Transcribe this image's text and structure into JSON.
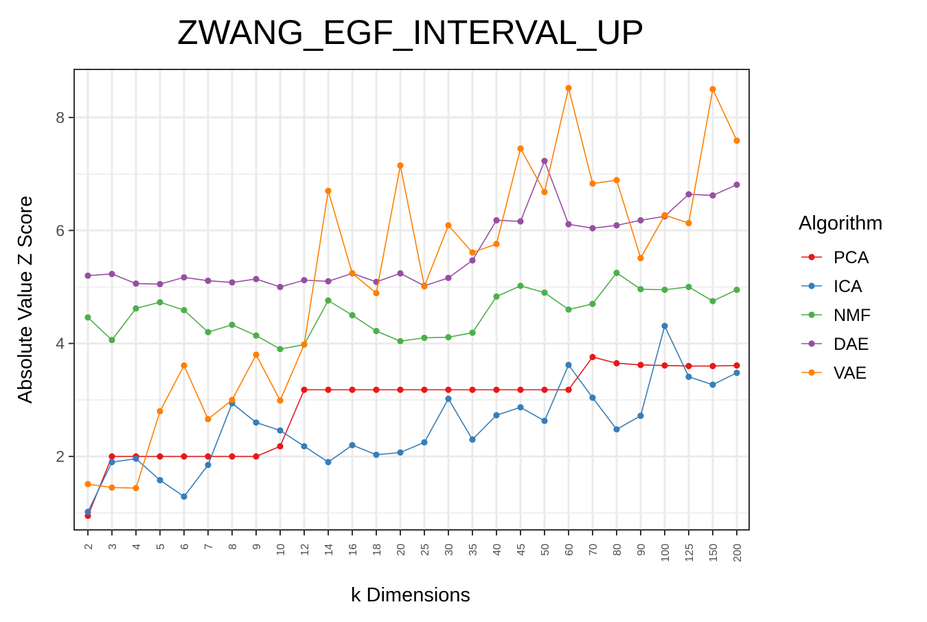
{
  "chart_data": {
    "type": "line",
    "title": "ZWANG_EGF_INTERVAL_UP",
    "xlabel": "k Dimensions",
    "ylabel": "Absolute Value Z Score",
    "categories": [
      "2",
      "3",
      "4",
      "5",
      "6",
      "7",
      "8",
      "9",
      "10",
      "12",
      "14",
      "16",
      "18",
      "20",
      "25",
      "30",
      "35",
      "40",
      "45",
      "50",
      "60",
      "70",
      "80",
      "90",
      "100",
      "125",
      "150",
      "200"
    ],
    "ylim": [
      0.7,
      8.85
    ],
    "yticks": [
      2,
      4,
      6,
      8
    ],
    "ytick_labels": [
      "2",
      "4",
      "6",
      "8"
    ],
    "grid": true,
    "legend": {
      "title": "Algorithm",
      "position": "right"
    },
    "series": [
      {
        "name": "PCA",
        "color": "#E41A1C",
        "values": [
          0.95,
          2.0,
          2.0,
          2.0,
          2.0,
          2.0,
          2.0,
          2.0,
          2.18,
          3.18,
          3.18,
          3.18,
          3.18,
          3.18,
          3.18,
          3.18,
          3.18,
          3.18,
          3.18,
          3.18,
          3.18,
          3.76,
          3.65,
          3.62,
          3.61,
          3.6,
          3.6,
          3.61
        ]
      },
      {
        "name": "ICA",
        "color": "#377EB8",
        "values": [
          1.02,
          1.9,
          1.96,
          1.58,
          1.29,
          1.85,
          2.94,
          2.6,
          2.46,
          2.18,
          1.9,
          2.2,
          2.03,
          2.07,
          2.25,
          3.02,
          2.3,
          2.73,
          2.87,
          2.63,
          3.62,
          3.04,
          2.48,
          2.72,
          4.31,
          3.41,
          3.27,
          3.48
        ]
      },
      {
        "name": "NMF",
        "color": "#4DAF4A",
        "values": [
          4.46,
          4.06,
          4.62,
          4.73,
          4.59,
          4.2,
          4.33,
          4.14,
          3.9,
          3.98,
          4.76,
          4.5,
          4.22,
          4.04,
          4.1,
          4.11,
          4.19,
          4.83,
          5.02,
          4.9,
          4.6,
          4.7,
          5.25,
          4.96,
          4.95,
          5.0,
          4.75,
          4.95
        ]
      },
      {
        "name": "DAE",
        "color": "#984EA3",
        "values": [
          5.2,
          5.23,
          5.06,
          5.05,
          5.17,
          5.11,
          5.08,
          5.14,
          5.0,
          5.12,
          5.1,
          5.24,
          5.09,
          5.24,
          5.02,
          5.16,
          5.47,
          6.18,
          6.16,
          7.23,
          6.11,
          6.04,
          6.09,
          6.18,
          6.25,
          6.64,
          6.62,
          6.81
        ]
      },
      {
        "name": "VAE",
        "color": "#FF7F00",
        "values": [
          1.51,
          1.45,
          1.44,
          2.8,
          3.61,
          2.66,
          3.0,
          3.8,
          2.99,
          3.98,
          6.7,
          5.24,
          4.89,
          7.15,
          5.01,
          6.09,
          5.61,
          5.76,
          7.45,
          6.68,
          8.52,
          6.83,
          6.89,
          5.51,
          6.27,
          6.13,
          8.5,
          7.59
        ]
      }
    ]
  }
}
